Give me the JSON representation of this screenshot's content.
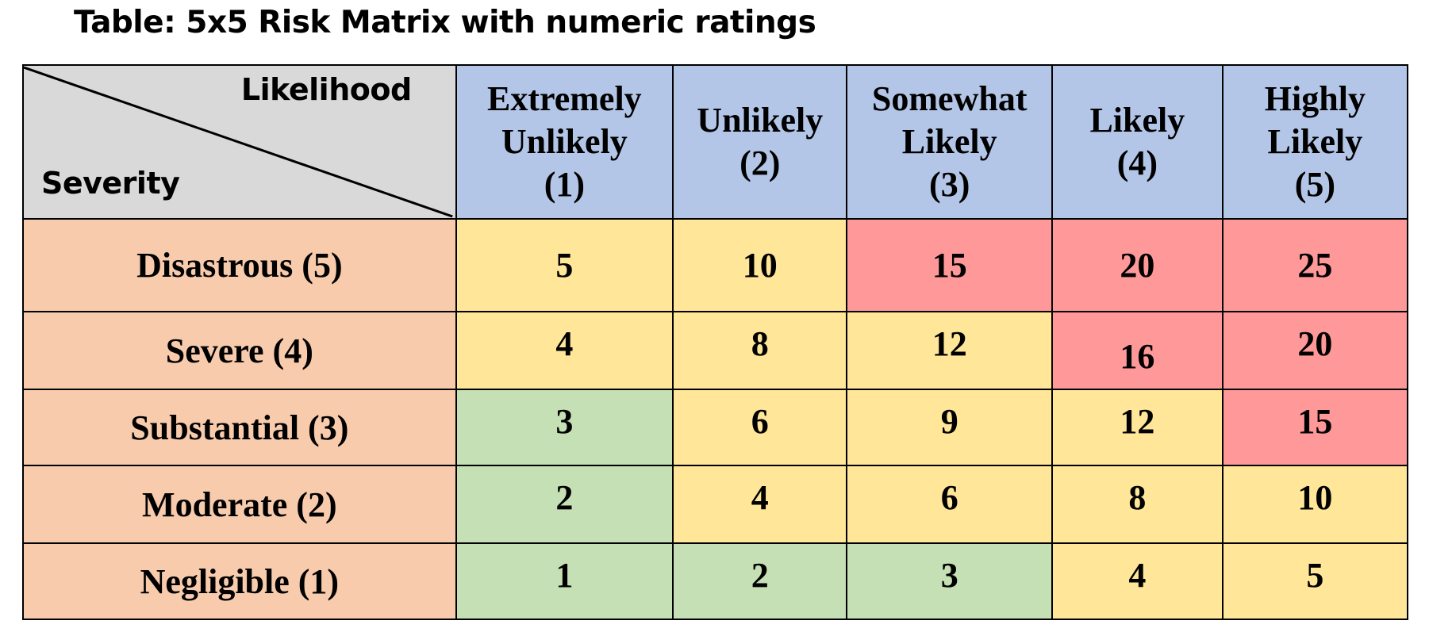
{
  "title": "Table: 5x5 Risk Matrix with numeric ratings",
  "corner": {
    "likelihood_label": "Likelihood",
    "severity_label": "Severity"
  },
  "columns": [
    {
      "lines": [
        "Extremely",
        "Unlikely",
        "(1)"
      ]
    },
    {
      "lines": [
        "Unlikely",
        "(2)"
      ]
    },
    {
      "lines": [
        "Somewhat",
        "Likely",
        "(3)"
      ]
    },
    {
      "lines": [
        "Likely",
        "(4)"
      ]
    },
    {
      "lines": [
        "Highly",
        "Likely",
        "(5)"
      ]
    }
  ],
  "rows": [
    {
      "label": "Disastrous (5)",
      "values": [
        "5",
        "10",
        "15",
        "20",
        "25"
      ]
    },
    {
      "label": "Severe (4)",
      "values": [
        "4",
        "8",
        "12",
        "16",
        "20"
      ]
    },
    {
      "label": "Substantial (3)",
      "values": [
        "3",
        "6",
        "9",
        "12",
        "15"
      ]
    },
    {
      "label": "Moderate (2)",
      "values": [
        "2",
        "4",
        "6",
        "8",
        "10"
      ]
    },
    {
      "label": "Negligible (1)",
      "values": [
        "1",
        "2",
        "3",
        "4",
        "5"
      ]
    }
  ],
  "colors": {
    "header_blue": "#b4c6e7",
    "row_header_orange": "#f8cbad",
    "high_risk_red": "#ff9999",
    "medium_risk_yellow": "#ffe699",
    "low_risk_green": "#c5e0b4",
    "corner_gray": "#d9d9d9"
  }
}
